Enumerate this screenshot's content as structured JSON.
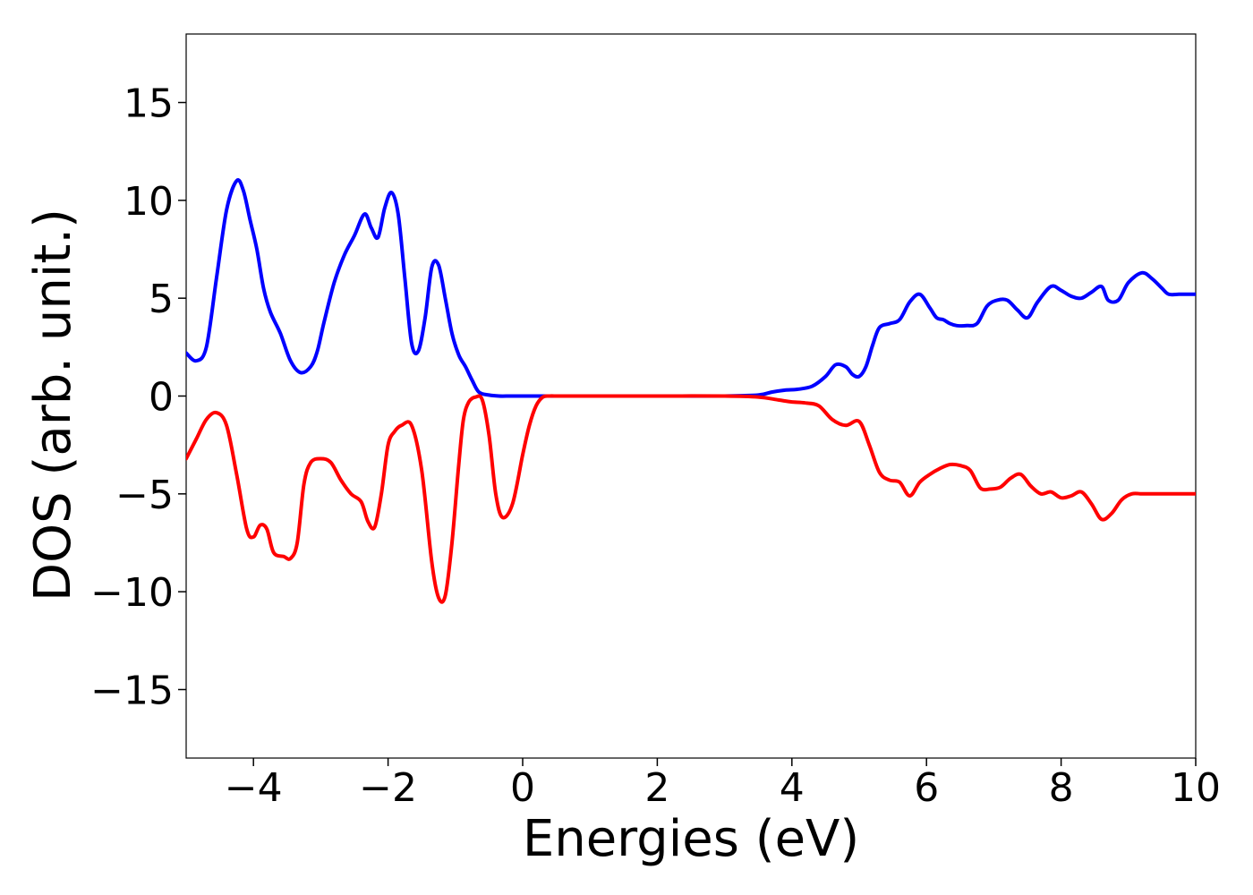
{
  "chart_data": {
    "type": "line",
    "title": "",
    "xlabel": "Energies (eV)",
    "ylabel": "DOS (arb. unit.)",
    "xlim": [
      -5,
      10
    ],
    "ylim": [
      -18.5,
      18.5
    ],
    "x_ticks": [
      -4,
      -2,
      0,
      2,
      4,
      6,
      8,
      10
    ],
    "x_tick_labels": [
      "−4",
      "−2",
      "0",
      "2",
      "4",
      "6",
      "8",
      "10"
    ],
    "y_ticks": [
      -15,
      -10,
      -5,
      0,
      5,
      10,
      15
    ],
    "y_tick_labels": [
      "−15",
      "−10",
      "−5",
      "0",
      "5",
      "10",
      "15"
    ],
    "grid": false,
    "legend": "none",
    "series": [
      {
        "color": "#0000ff",
        "x": [
          -5.0,
          -4.85,
          -4.7,
          -4.55,
          -4.4,
          -4.25,
          -4.15,
          -4.05,
          -3.95,
          -3.85,
          -3.75,
          -3.6,
          -3.45,
          -3.3,
          -3.15,
          -3.05,
          -2.95,
          -2.8,
          -2.65,
          -2.5,
          -2.35,
          -2.25,
          -2.15,
          -2.05,
          -1.95,
          -1.85,
          -1.75,
          -1.65,
          -1.55,
          -1.45,
          -1.35,
          -1.25,
          -1.15,
          -1.05,
          -0.95,
          -0.85,
          -0.75,
          -0.65,
          -0.5,
          -0.35,
          -0.2,
          -0.1,
          0.0,
          0.5,
          1.0,
          2.0,
          3.0,
          3.5,
          3.7,
          3.9,
          4.1,
          4.3,
          4.5,
          4.65,
          4.8,
          4.9,
          5.0,
          5.1,
          5.2,
          5.3,
          5.45,
          5.6,
          5.75,
          5.9,
          6.05,
          6.15,
          6.25,
          6.35,
          6.45,
          6.6,
          6.75,
          6.9,
          7.05,
          7.2,
          7.35,
          7.5,
          7.65,
          7.85,
          8.0,
          8.15,
          8.3,
          8.45,
          8.6,
          8.7,
          8.85,
          9.0,
          9.2,
          9.35,
          9.5,
          9.6,
          9.75,
          9.85,
          10.0
        ],
        "y": [
          2.2,
          1.8,
          2.5,
          6.0,
          9.5,
          11.0,
          10.5,
          9.0,
          7.5,
          5.5,
          4.3,
          3.2,
          1.8,
          1.2,
          1.5,
          2.3,
          3.8,
          5.8,
          7.2,
          8.2,
          9.3,
          8.6,
          8.1,
          9.6,
          10.4,
          9.3,
          6.0,
          2.7,
          2.3,
          4.0,
          6.6,
          6.7,
          5.0,
          3.2,
          2.1,
          1.5,
          0.8,
          0.2,
          0.05,
          0.0,
          0.0,
          0.0,
          0.0,
          0.0,
          0.0,
          0.0,
          0.0,
          0.05,
          0.2,
          0.3,
          0.35,
          0.5,
          1.0,
          1.6,
          1.5,
          1.1,
          1.0,
          1.5,
          2.6,
          3.5,
          3.7,
          3.9,
          4.8,
          5.2,
          4.5,
          4.0,
          3.9,
          3.7,
          3.6,
          3.6,
          3.7,
          4.6,
          4.9,
          4.9,
          4.4,
          4.0,
          4.8,
          5.6,
          5.4,
          5.1,
          5.0,
          5.3,
          5.6,
          4.9,
          4.9,
          5.8,
          6.3,
          6.0,
          5.5,
          5.2,
          5.2,
          5.2,
          5.2
        ]
      },
      {
        "color": "#ff0000",
        "x": [
          -5.0,
          -4.85,
          -4.7,
          -4.55,
          -4.4,
          -4.25,
          -4.1,
          -4.0,
          -3.9,
          -3.8,
          -3.7,
          -3.55,
          -3.45,
          -3.35,
          -3.25,
          -3.15,
          -3.0,
          -2.85,
          -2.7,
          -2.55,
          -2.4,
          -2.3,
          -2.2,
          -2.1,
          -2.0,
          -1.9,
          -1.8,
          -1.65,
          -1.5,
          -1.35,
          -1.25,
          -1.15,
          -1.05,
          -0.95,
          -0.88,
          -0.8,
          -0.7,
          -0.6,
          -0.5,
          -0.4,
          -0.3,
          -0.15,
          0.0,
          0.1,
          0.2,
          0.3,
          0.4,
          0.5,
          0.6,
          0.7,
          0.8,
          0.95,
          1.1,
          1.25,
          1.4,
          1.6,
          2.0,
          3.0,
          3.5,
          3.8,
          4.0,
          4.2,
          4.4,
          4.6,
          4.8,
          5.0,
          5.15,
          5.3,
          5.45,
          5.6,
          5.75,
          5.9,
          6.05,
          6.2,
          6.35,
          6.5,
          6.65,
          6.8,
          6.95,
          7.1,
          7.25,
          7.4,
          7.55,
          7.7,
          7.85,
          8.0,
          8.15,
          8.3,
          8.45,
          8.6,
          8.75,
          8.9,
          9.05,
          9.2,
          9.35,
          9.5,
          9.65,
          9.8,
          10.0
        ],
        "y": [
          -3.2,
          -2.2,
          -1.2,
          -0.85,
          -1.5,
          -4.0,
          -6.8,
          -7.2,
          -6.6,
          -6.8,
          -8.0,
          -8.2,
          -8.3,
          -7.5,
          -4.5,
          -3.4,
          -3.2,
          -3.4,
          -4.3,
          -5.0,
          -5.4,
          -6.4,
          -6.7,
          -5.0,
          -2.5,
          -1.8,
          -1.5,
          -1.5,
          -3.8,
          -8.5,
          -10.3,
          -10.2,
          -7.5,
          -3.5,
          -1.2,
          -0.3,
          -0.05,
          -0.2,
          -2.0,
          -5.0,
          -6.2,
          -5.5,
          -3.0,
          -1.5,
          -0.5,
          -0.05,
          0.0,
          0.0,
          0.0,
          0.0,
          0.0,
          0.0,
          0.0,
          0.0,
          0.0,
          0.0,
          0.0,
          0.0,
          -0.05,
          -0.2,
          -0.3,
          -0.35,
          -0.5,
          -1.2,
          -1.5,
          -1.3,
          -2.5,
          -3.9,
          -4.3,
          -4.4,
          -5.1,
          -4.4,
          -4.0,
          -3.7,
          -3.5,
          -3.55,
          -3.8,
          -4.7,
          -4.75,
          -4.65,
          -4.2,
          -4.0,
          -4.6,
          -5.0,
          -4.9,
          -5.2,
          -5.1,
          -4.9,
          -5.5,
          -6.3,
          -6.0,
          -5.3,
          -5.0,
          -5.0,
          -5.0,
          -5.0,
          -5.0,
          -5.0,
          -5.0
        ]
      }
    ]
  }
}
